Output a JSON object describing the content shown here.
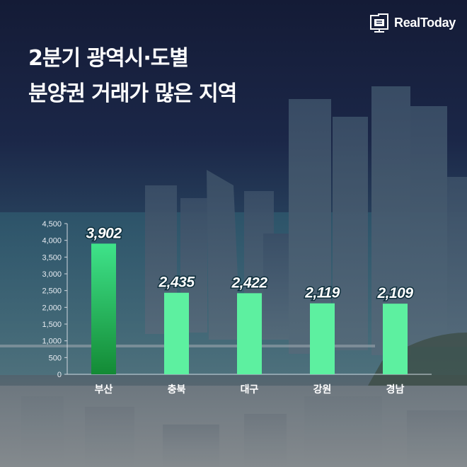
{
  "brand": {
    "name": "RealToday",
    "logo_icon": "building-cube-icon"
  },
  "title": {
    "line1": "2분기 광역시·도별",
    "line2": "분양권 거래가 많은 지역"
  },
  "colors": {
    "bar": "#5df0a0",
    "bar_highlight_top": "#3fe38a",
    "bar_highlight_bottom": "#138a35",
    "label_outline": "#0e2f3c",
    "axis": "#d0d6de"
  },
  "chart_data": {
    "type": "bar",
    "title": "2분기 광역시·도별 분양권 거래가 많은 지역",
    "categories": [
      "부산",
      "충북",
      "대구",
      "강원",
      "경남"
    ],
    "values": [
      3902,
      2435,
      2422,
      2119,
      2109
    ],
    "value_labels": [
      "3,902",
      "2,435",
      "2,422",
      "2,119",
      "2,109"
    ],
    "highlight_index": 0,
    "ylim": [
      0,
      4500
    ],
    "yticks": [
      0,
      500,
      1000,
      1500,
      2000,
      2500,
      3000,
      3500,
      4000,
      4500
    ],
    "ytick_labels": [
      "0",
      "500",
      "1,000",
      "1,500",
      "2,000",
      "2,500",
      "3,000",
      "3,500",
      "4,000",
      "4,500"
    ],
    "xlabel": "",
    "ylabel": "",
    "grid": false,
    "legend": "none"
  }
}
